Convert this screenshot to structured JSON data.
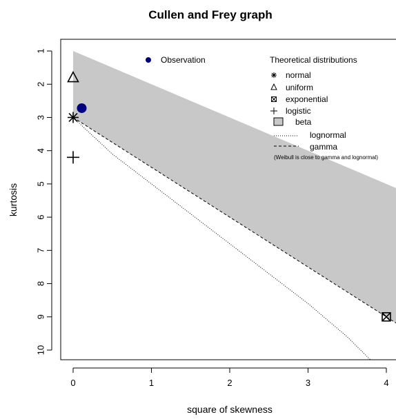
{
  "chart_data": {
    "type": "scatter",
    "title": "Cullen and Frey graph",
    "xlabel": "square of skewness",
    "ylabel": "kurtosis",
    "xlim": [
      0,
      4
    ],
    "ylim": [
      1,
      10
    ],
    "y_inverted": true,
    "x_ticks": [
      0,
      1,
      2,
      3,
      4
    ],
    "y_ticks": [
      1,
      2,
      3,
      4,
      5,
      6,
      7,
      8,
      9,
      10
    ],
    "observation": {
      "name": "Observation",
      "x": 0.11,
      "y": 2.72,
      "color": "#000080"
    },
    "distributions": {
      "normal": {
        "x": 0,
        "y": 3
      },
      "uniform": {
        "x": 0,
        "y": 1.8
      },
      "exponential": {
        "x": 4,
        "y": 9
      },
      "logistic": {
        "x": 0,
        "y": 4.2
      }
    },
    "beta_region": {
      "x": [
        0,
        4.2,
        4.2,
        0
      ],
      "y": [
        1,
        5.2,
        9.3,
        3
      ],
      "color": "#c8c8c8"
    },
    "lognormal_line": {
      "x": [
        0,
        0.5,
        1.0,
        1.5,
        2.0,
        2.5,
        3.0,
        3.5,
        3.8
      ],
      "y": [
        3,
        4.1,
        5.0,
        5.9,
        6.8,
        7.7,
        8.6,
        9.6,
        10.3
      ]
    },
    "gamma_line": {
      "x": [
        0,
        4.2
      ],
      "y": [
        3,
        9.3
      ]
    },
    "legend": {
      "placement": "top-right",
      "header": "Theoretical distributions",
      "items": [
        {
          "label": "normal",
          "symbol": "asterisk"
        },
        {
          "label": "uniform",
          "symbol": "triangle"
        },
        {
          "label": "exponential",
          "symbol": "boxed-x"
        },
        {
          "label": "logistic",
          "symbol": "plus"
        },
        {
          "label": "beta",
          "symbol": "filled-box"
        },
        {
          "label": "lognormal",
          "symbol": "dotted-line"
        },
        {
          "label": "gamma",
          "symbol": "dashed-line"
        }
      ],
      "note": "(Weibull is close to gamma and lognormal)"
    }
  }
}
